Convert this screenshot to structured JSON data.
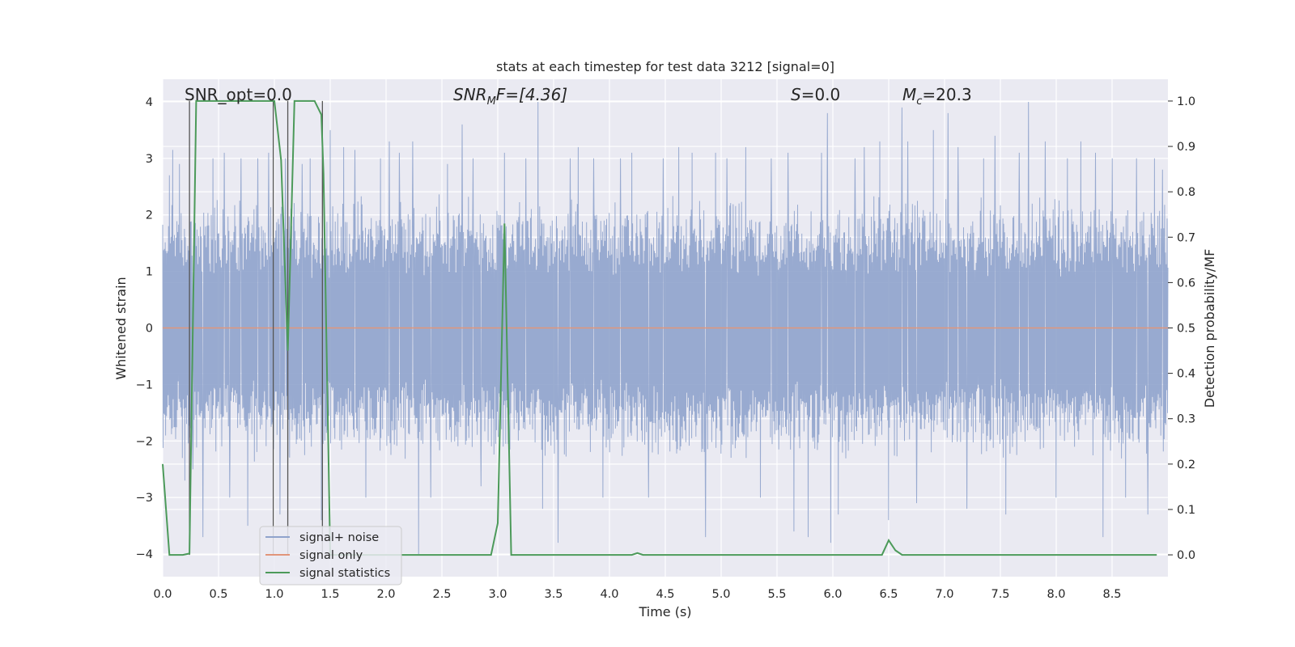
{
  "chart_data": {
    "type": "line",
    "title": "stats at each timestep for test data 3212 [signal=0]",
    "xlabel": "Time (s)",
    "ylabel": "Whitened strain",
    "y2label": "Detection probability/MF",
    "xlim": [
      0.0,
      9.0
    ],
    "ylim": [
      -4.4,
      4.4
    ],
    "y2lim": [
      -0.048,
      1.048
    ],
    "xticks": [
      0.0,
      0.5,
      1.0,
      1.5,
      2.0,
      2.5,
      3.0,
      3.5,
      4.0,
      4.5,
      5.0,
      5.5,
      6.0,
      6.5,
      7.0,
      7.5,
      8.0,
      8.5
    ],
    "xtick_labels": [
      "0.0",
      "0.5",
      "1.0",
      "1.5",
      "2.0",
      "2.5",
      "3.0",
      "3.5",
      "4.0",
      "4.5",
      "5.0",
      "5.5",
      "6.0",
      "6.5",
      "7.0",
      "7.5",
      "8.0",
      "8.5"
    ],
    "yticks": [
      -4,
      -3,
      -2,
      -1,
      0,
      1,
      2,
      3,
      4
    ],
    "ytick_labels": [
      "−4",
      "−3",
      "−2",
      "−1",
      "0",
      "1",
      "2",
      "3",
      "4"
    ],
    "y2ticks": [
      0.0,
      0.1,
      0.2,
      0.3,
      0.4,
      0.5,
      0.6,
      0.7,
      0.8,
      0.9,
      1.0
    ],
    "y2tick_labels": [
      "0.0",
      "0.1",
      "0.2",
      "0.3",
      "0.4",
      "0.5",
      "0.6",
      "0.7",
      "0.8",
      "0.9",
      "1.0"
    ],
    "annotations": {
      "snr_opt": {
        "prefix": "SNR_opt=0.0"
      },
      "snr_mf": {
        "base": "SNR",
        "sub": "M",
        "rest": "F=[4.36]"
      },
      "s": {
        "var": "S",
        "rest": "=0.0"
      },
      "mc": {
        "base": "M",
        "sub": "c",
        "rest": "=20.3"
      }
    },
    "legend": {
      "placement": "lower-left",
      "entries": [
        "signal+ noise",
        "signal only",
        "signal statistics"
      ]
    },
    "colors": {
      "noise": "#8fa3cc",
      "signal": "#e1957a",
      "stats": "#4c9a5a",
      "vline": "#555555",
      "background": "#eaeaf2",
      "grid": "#ffffff"
    },
    "series": [
      {
        "name": "signal+ noise",
        "axis": "left",
        "description_values": "dense noise approx ±2.3 with spikes to ±4",
        "spikes": [
          [
            0.06,
            2.7
          ],
          [
            0.09,
            3.15
          ],
          [
            0.15,
            2.9
          ],
          [
            0.2,
            -2.7
          ],
          [
            0.27,
            -2.5
          ],
          [
            0.36,
            -3.7
          ],
          [
            0.45,
            3.0
          ],
          [
            0.55,
            3.1
          ],
          [
            0.6,
            -3.0
          ],
          [
            0.7,
            3.0
          ],
          [
            0.76,
            -3.5
          ],
          [
            0.85,
            3.0
          ],
          [
            0.95,
            3.1
          ],
          [
            1.05,
            -3.3
          ],
          [
            1.1,
            3.0
          ],
          [
            1.25,
            2.9
          ],
          [
            1.32,
            3.0
          ],
          [
            1.42,
            -3.4
          ],
          [
            1.5,
            3.5
          ],
          [
            1.62,
            3.2
          ],
          [
            1.72,
            3.15
          ],
          [
            1.82,
            -3.0
          ],
          [
            1.95,
            3.0
          ],
          [
            2.03,
            3.3
          ],
          [
            2.12,
            3.1
          ],
          [
            2.24,
            3.3
          ],
          [
            2.29,
            -4.0
          ],
          [
            2.4,
            -3.0
          ],
          [
            2.55,
            2.9
          ],
          [
            2.68,
            3.6
          ],
          [
            2.78,
            3.0
          ],
          [
            2.85,
            -2.8
          ],
          [
            3.06,
            3.1
          ],
          [
            3.25,
            3.0
          ],
          [
            3.36,
            4.0
          ],
          [
            3.4,
            -3.2
          ],
          [
            3.54,
            -3.8
          ],
          [
            3.65,
            3.0
          ],
          [
            3.72,
            3.2
          ],
          [
            3.86,
            3.0
          ],
          [
            3.94,
            -3.0
          ],
          [
            4.1,
            3.0
          ],
          [
            4.2,
            3.1
          ],
          [
            4.35,
            -3.0
          ],
          [
            4.48,
            3.0
          ],
          [
            4.62,
            3.2
          ],
          [
            4.74,
            3.1
          ],
          [
            4.86,
            -3.7
          ],
          [
            4.95,
            3.1
          ],
          [
            5.05,
            3.0
          ],
          [
            5.22,
            3.2
          ],
          [
            5.35,
            -3.0
          ],
          [
            5.45,
            3.0
          ],
          [
            5.6,
            3.1
          ],
          [
            5.65,
            -3.6
          ],
          [
            5.78,
            -3.7
          ],
          [
            5.9,
            3.1
          ],
          [
            5.95,
            3.8
          ],
          [
            5.98,
            -3.8
          ],
          [
            6.05,
            -3.3
          ],
          [
            6.2,
            3.0
          ],
          [
            6.28,
            3.2
          ],
          [
            6.42,
            3.3
          ],
          [
            6.5,
            -3.4
          ],
          [
            6.62,
            3.9
          ],
          [
            6.67,
            3.3
          ],
          [
            6.75,
            -3.1
          ],
          [
            6.9,
            3.5
          ],
          [
            7.03,
            3.8
          ],
          [
            7.12,
            3.2
          ],
          [
            7.2,
            -3.2
          ],
          [
            7.35,
            3.0
          ],
          [
            7.45,
            3.4
          ],
          [
            7.55,
            -3.3
          ],
          [
            7.67,
            3.1
          ],
          [
            7.75,
            4.0
          ],
          [
            7.9,
            3.3
          ],
          [
            8.0,
            -3.0
          ],
          [
            8.1,
            3.0
          ],
          [
            8.22,
            3.3
          ],
          [
            8.35,
            3.1
          ],
          [
            8.42,
            -3.7
          ],
          [
            8.5,
            3.0
          ],
          [
            8.62,
            -3.0
          ],
          [
            8.72,
            3.0
          ],
          [
            8.82,
            -3.3
          ],
          [
            8.88,
            3.0
          ],
          [
            8.95,
            2.8
          ]
        ]
      },
      {
        "name": "signal only",
        "axis": "left",
        "x": [
          0.0,
          9.0
        ],
        "y": [
          0.0,
          0.0
        ]
      },
      {
        "name": "signal statistics",
        "axis": "right",
        "x": [
          0.0,
          0.06,
          0.18,
          0.24,
          0.3,
          0.42,
          0.54,
          0.66,
          0.78,
          0.9,
          1.0,
          1.06,
          1.12,
          1.18,
          1.24,
          1.3,
          1.36,
          1.42,
          1.44,
          1.5,
          1.56,
          1.62,
          1.8,
          2.2,
          2.7,
          2.94,
          3.0,
          3.06,
          3.12,
          3.2,
          3.6,
          4.2,
          4.25,
          4.3,
          5.0,
          6.0,
          6.44,
          6.5,
          6.56,
          6.62,
          7.0,
          8.0,
          8.9
        ],
        "y": [
          0.2,
          0.0,
          0.0,
          0.003,
          1.0,
          1.0,
          1.0,
          1.0,
          1.0,
          1.0,
          1.0,
          0.87,
          0.45,
          1.0,
          1.0,
          1.0,
          1.0,
          0.97,
          0.84,
          0.0,
          0.0,
          0.0,
          0.0,
          0.0,
          0.0,
          0.0,
          0.07,
          0.73,
          0.0,
          0.0,
          0.0,
          0.0,
          0.004,
          0.0,
          0.0,
          0.0,
          0.0,
          0.032,
          0.01,
          0.0,
          0.0,
          0.0,
          0.0
        ]
      }
    ],
    "vertical_markers": [
      0.24,
      0.99,
      1.12,
      1.43
    ]
  }
}
